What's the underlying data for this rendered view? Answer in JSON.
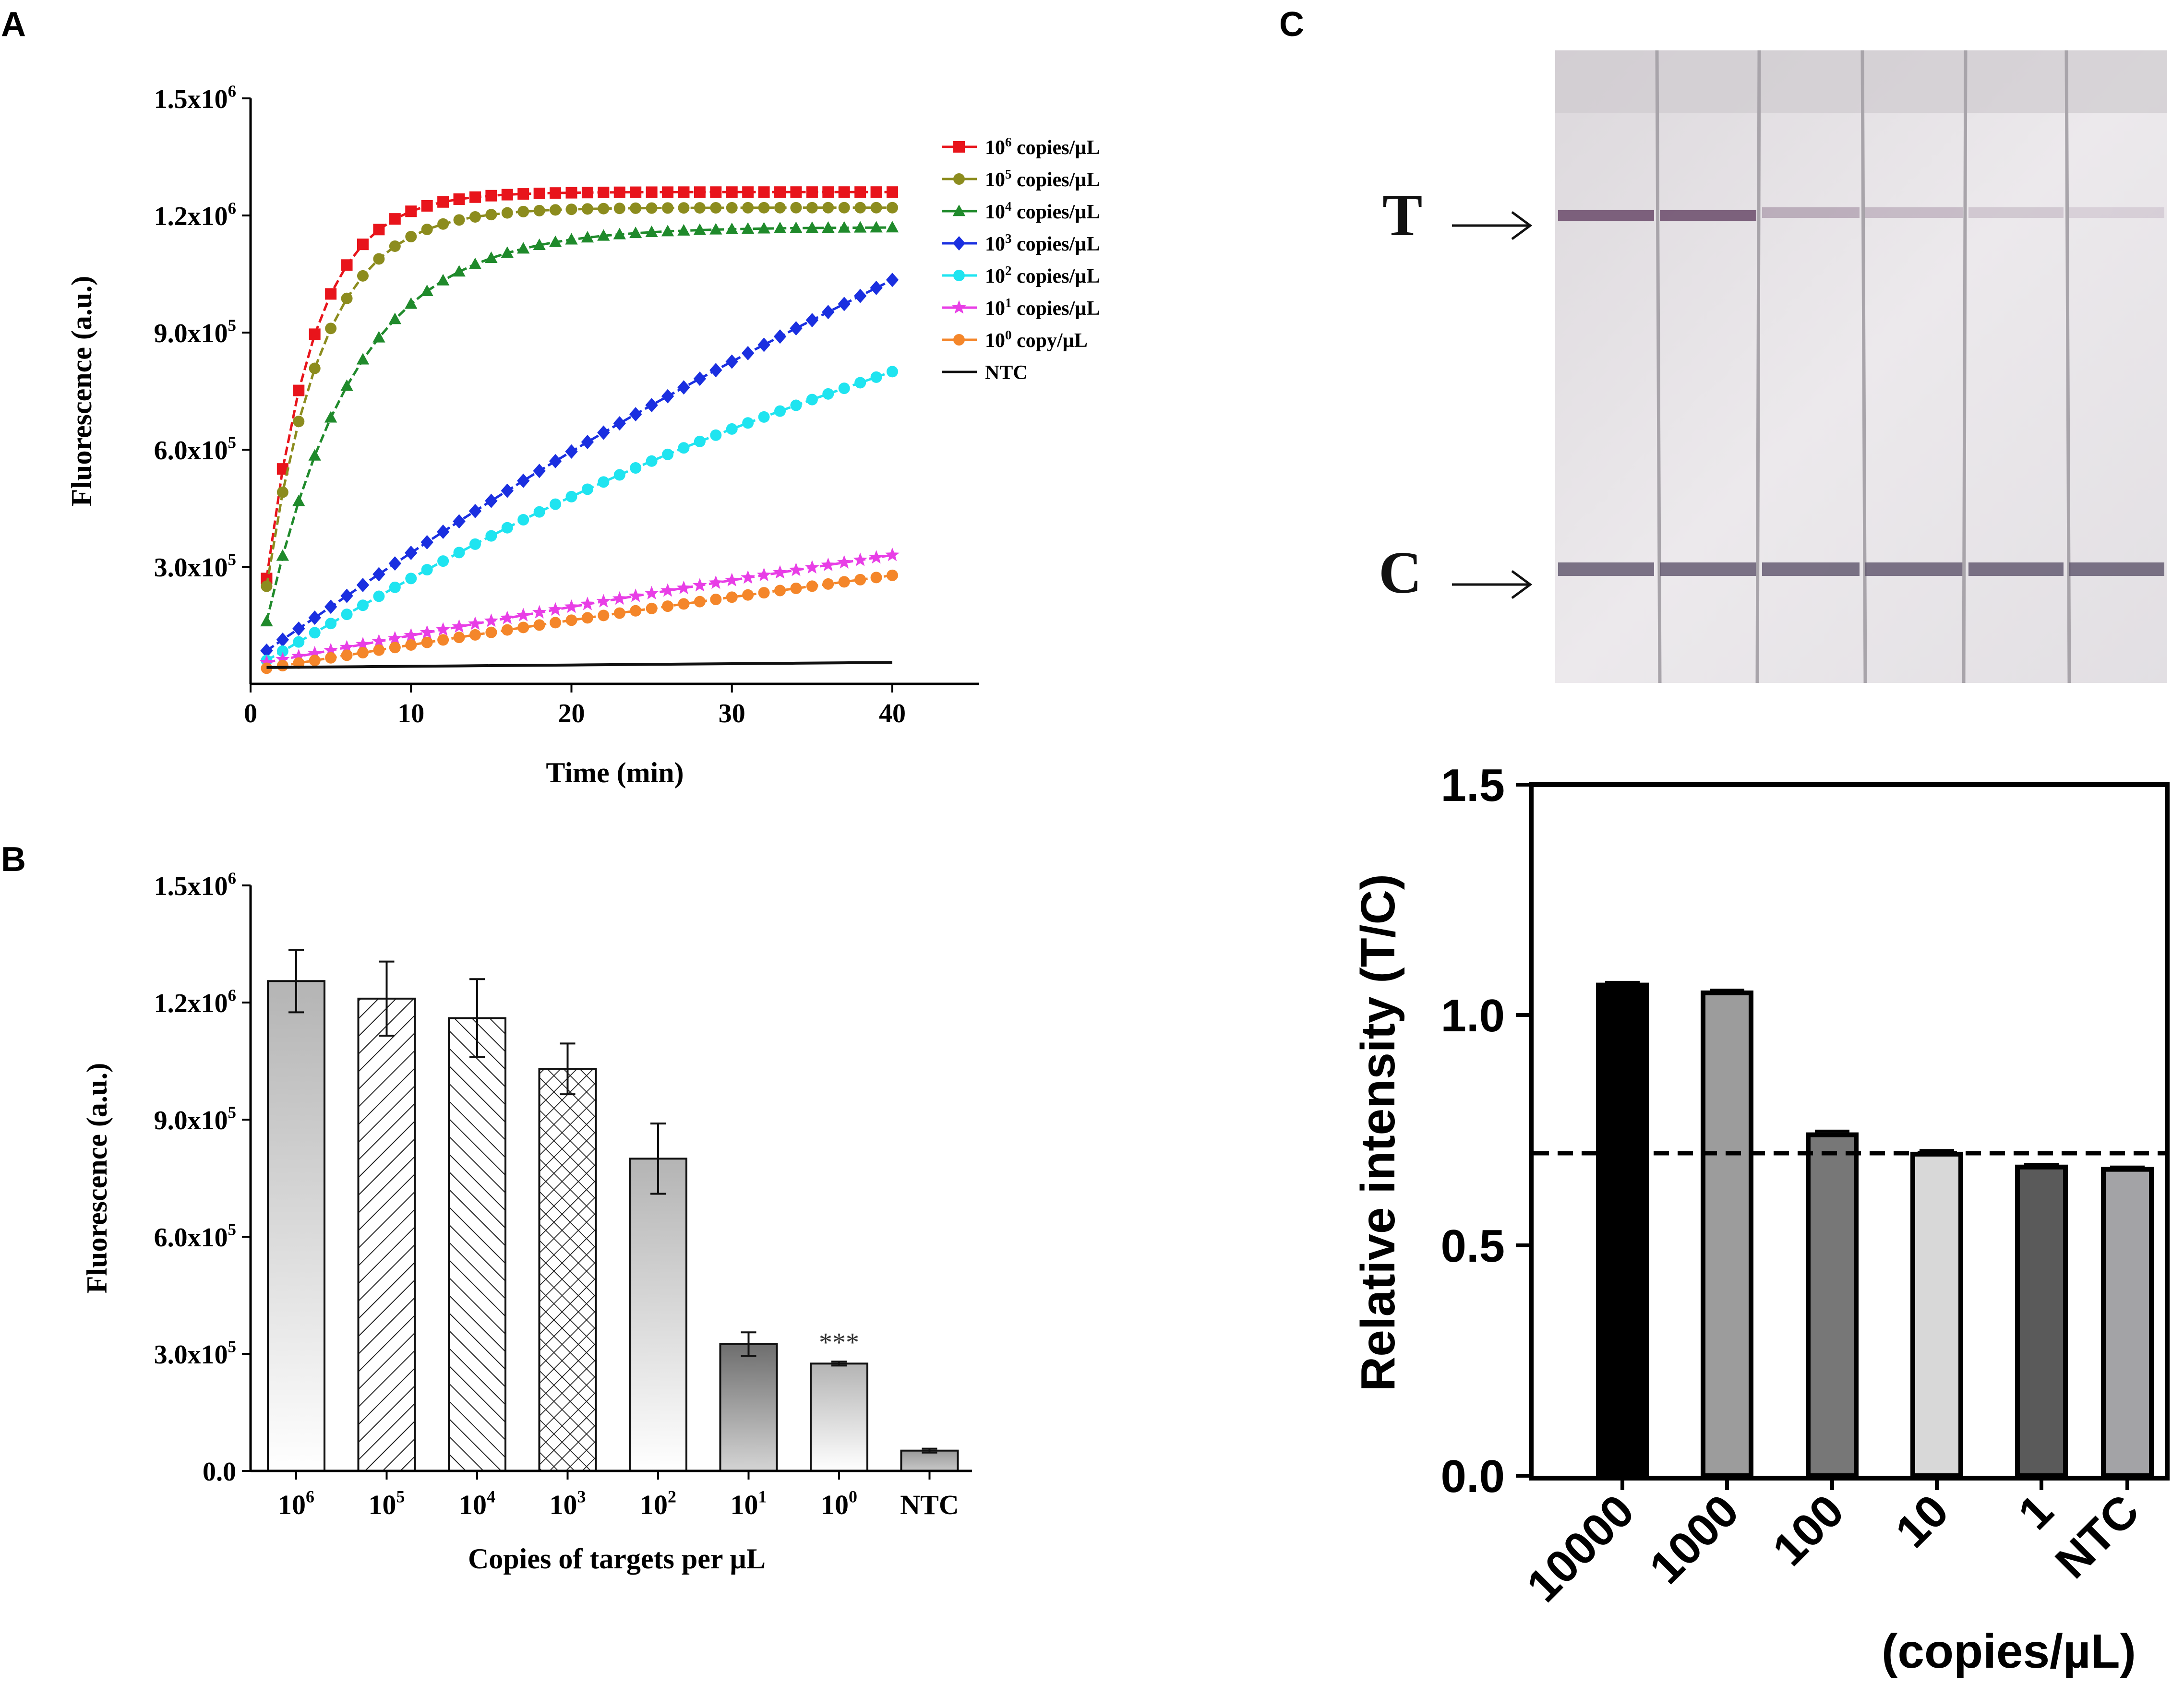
{
  "figure": {
    "panel_labels": [
      "A",
      "B",
      "C"
    ]
  },
  "chart_data": [
    {
      "id": "A",
      "type": "line",
      "title": "",
      "xlabel": "Time (min)",
      "ylabel": "Fluorescence (a.u.)",
      "xlim": [
        0,
        45
      ],
      "ylim": [
        0,
        1500000
      ],
      "x_ticks": [
        0,
        10,
        20,
        30,
        40
      ],
      "x_tick_labels": [
        "0",
        "10",
        "20",
        "30",
        "40"
      ],
      "y_ticks": [
        300000,
        600000,
        900000,
        1200000,
        1500000
      ],
      "y_tick_mantissas": [
        "3.0x10",
        "6.0x10",
        "9.0x10",
        "1.2x10",
        "1.5x10"
      ],
      "y_tick_exponents": [
        "5",
        "5",
        "5",
        "6",
        "6"
      ],
      "legend_position": "top-right",
      "series": [
        {
          "name": "10^6 copies/µL",
          "base": "10",
          "exp": "6",
          "unit": " copies/µL",
          "color": "#e8141b",
          "marker": "square",
          "model": "sat",
          "y0": 270000,
          "ymax": 1260000,
          "tau": 3.0
        },
        {
          "name": "10^5 copies/µL",
          "base": "10",
          "exp": "5",
          "unit": " copies/µL",
          "color": "#8c8c1e",
          "marker": "circle",
          "model": "sat",
          "y0": 250000,
          "ymax": 1220000,
          "tau": 3.5
        },
        {
          "name": "10^4 copies/µL",
          "base": "10",
          "exp": "4",
          "unit": " copies/µL",
          "color": "#1f8a2b",
          "marker": "triangle-up",
          "model": "sat",
          "y0": 160000,
          "ymax": 1170000,
          "tau": 5.5
        },
        {
          "name": "10^3 copies/µL",
          "base": "10",
          "exp": "3",
          "unit": " copies/µL",
          "color": "#1a2fe0",
          "marker": "diamond",
          "model": "curve",
          "y0": 85000,
          "y40": 1035000,
          "bend": 0.05
        },
        {
          "name": "10^2 copies/µL",
          "base": "10",
          "exp": "2",
          "unit": " copies/µL",
          "color": "#1fe4f0",
          "marker": "circle",
          "model": "curve",
          "y0": 60000,
          "y40": 800000,
          "bend": 0.08
        },
        {
          "name": "10^1 copies/µL",
          "base": "10",
          "exp": "1",
          "unit": " copies/µL",
          "color": "#e83ee6",
          "marker": "star",
          "model": "curve",
          "y0": 55000,
          "y40": 330000,
          "bend": 0.03
        },
        {
          "name": "10^0 copy/µL",
          "base": "10",
          "exp": "0",
          "unit": " copy/µL",
          "color": "#f4862a",
          "marker": "circle",
          "model": "curve",
          "y0": 40000,
          "y40": 278000,
          "bend": 0.03
        },
        {
          "name": "NTC",
          "base": "NTC",
          "exp": "",
          "unit": "",
          "color": "#111111",
          "marker": "none",
          "model": "curve",
          "y0": 42000,
          "y40": 55000,
          "bend": 0.0
        }
      ]
    },
    {
      "id": "B",
      "type": "bar",
      "title": "",
      "xlabel": "Copies of targets per µL",
      "ylabel": "Fluorescence (a.u.)",
      "ylim": [
        0,
        1500000
      ],
      "y_ticks": [
        0,
        300000,
        600000,
        900000,
        1200000,
        1500000
      ],
      "y_tick_mantissas": [
        "0.0",
        "3.0x10",
        "6.0x10",
        "9.0x10",
        "1.2x10",
        "1.5x10"
      ],
      "y_tick_exponents": [
        "",
        "5",
        "5",
        "5",
        "6",
        "6"
      ],
      "categories": [
        "10^6",
        "10^5",
        "10^4",
        "10^3",
        "10^2",
        "10^1",
        "10^0",
        "NTC"
      ],
      "category_bases": [
        "10",
        "10",
        "10",
        "10",
        "10",
        "10",
        "10",
        "NTC"
      ],
      "category_exps": [
        "6",
        "5",
        "4",
        "3",
        "2",
        "1",
        "0",
        ""
      ],
      "values": [
        1255000,
        1210000,
        1160000,
        1030000,
        800000,
        325000,
        275000,
        52000
      ],
      "errors": [
        80000,
        95000,
        100000,
        65000,
        90000,
        30000,
        5000,
        5000
      ],
      "fills": [
        "grad-light",
        "hatch-fwd",
        "hatch-back",
        "crosshatch",
        "grad-light",
        "grad-dark",
        "grad-light",
        "solid-gray"
      ],
      "annotations": [
        {
          "category_index": 6,
          "text": "***"
        }
      ]
    },
    {
      "id": "C",
      "type": "bar",
      "title": "",
      "xlabel": "(copies/µL)",
      "ylabel": "Relative intensity (T/C)",
      "ylim": [
        0,
        1.5
      ],
      "y_ticks": [
        0.0,
        0.5,
        1.0,
        1.5
      ],
      "y_tick_labels": [
        "0.0",
        "0.5",
        "1.0",
        "1.5"
      ],
      "categories": [
        "10000",
        "1000",
        "100",
        "10",
        "1",
        "NTC"
      ],
      "values": [
        1.065,
        1.048,
        0.74,
        0.698,
        0.67,
        0.665
      ],
      "errors": [
        0.006,
        0.006,
        0.008,
        0.008,
        0.006,
        0.005
      ],
      "colors": [
        "#000000",
        "#9c9c9c",
        "#777777",
        "#d8d8d8",
        "#5a5a5a",
        "#a3a3a6"
      ],
      "threshold": 0.7,
      "strip_image": {
        "labels": [
          "T",
          "C"
        ],
        "lanes": 6
      }
    }
  ]
}
